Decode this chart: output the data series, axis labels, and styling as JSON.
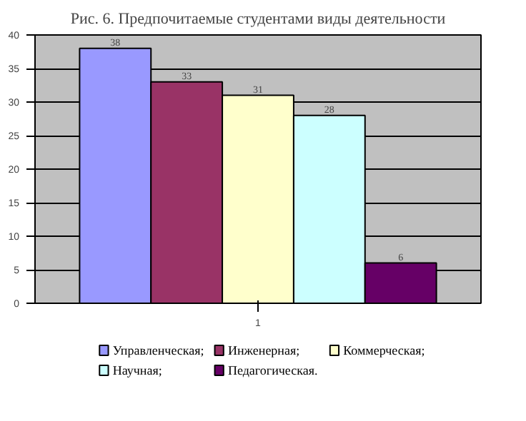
{
  "chart_data": {
    "type": "bar",
    "title": "Рис. 6. Предпочитаемые студентами виды деятельности",
    "categories": [
      "1"
    ],
    "series": [
      {
        "name": "Управленческая;",
        "color": "#9999ff",
        "values": [
          38
        ]
      },
      {
        "name": "Инженерная;",
        "color": "#993366",
        "values": [
          33
        ]
      },
      {
        "name": "Коммерческая;",
        "color": "#ffffcc",
        "values": [
          31
        ]
      },
      {
        "name": "Научная;",
        "color": "#ccffff",
        "values": [
          28
        ]
      },
      {
        "name": "Педагогическая.",
        "color": "#660066",
        "values": [
          6
        ]
      }
    ],
    "ylim": [
      0,
      40
    ],
    "yticks": [
      0,
      5,
      10,
      15,
      20,
      25,
      30,
      35,
      40
    ],
    "grid": "y",
    "legend": "bottom",
    "data_labels": true
  }
}
